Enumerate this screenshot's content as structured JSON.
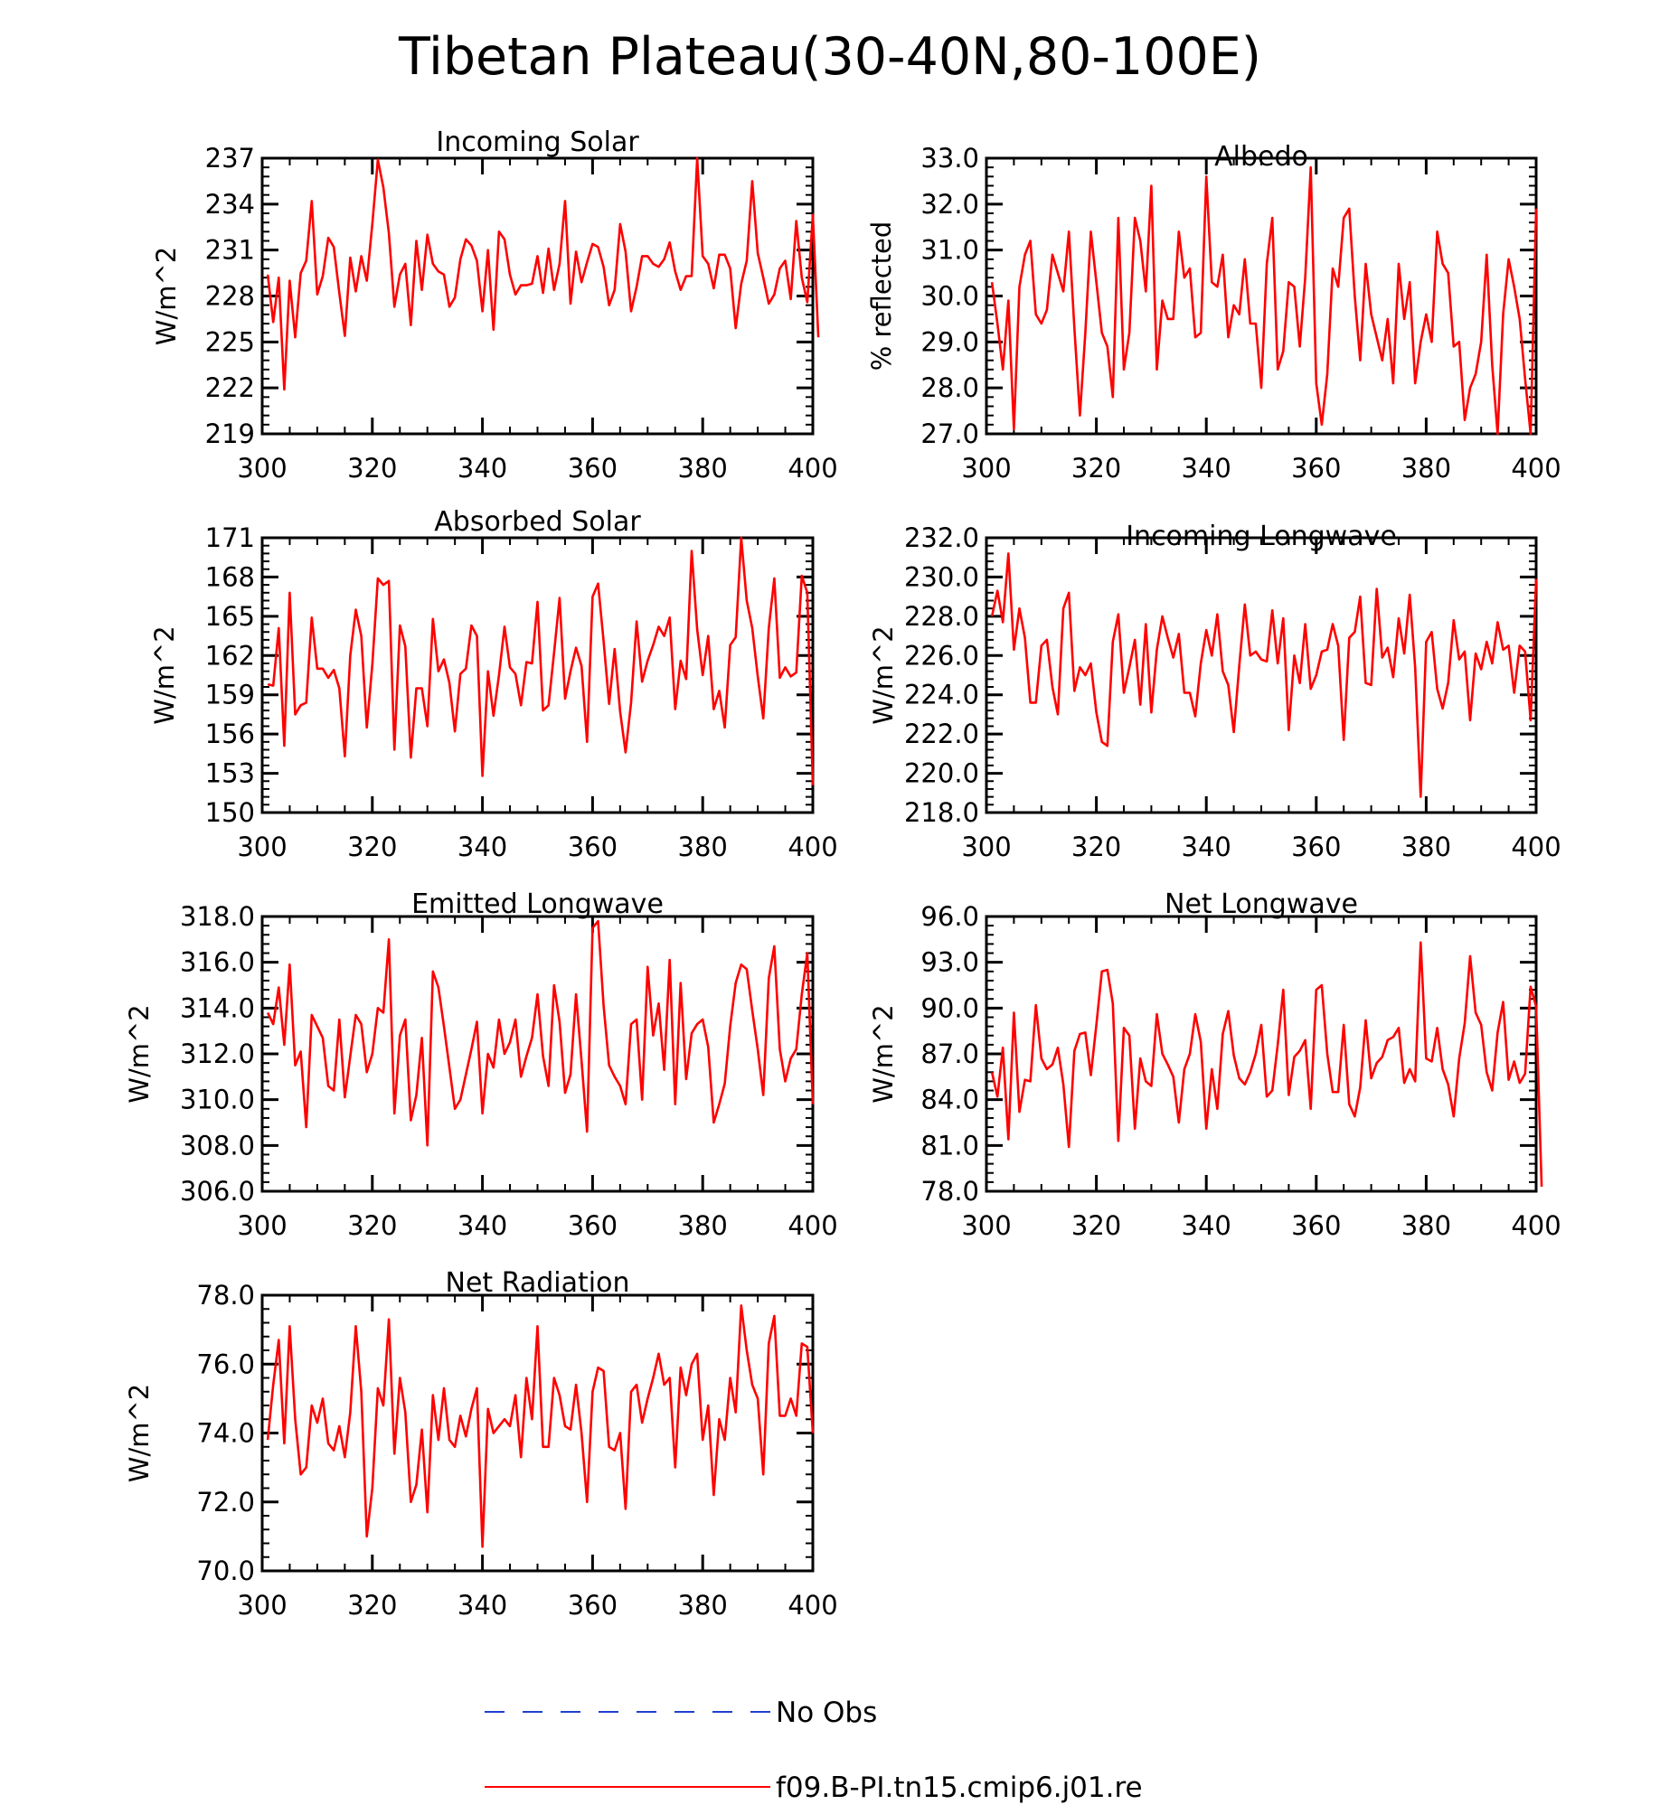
{
  "figure": {
    "title": "Tibetan Plateau(30-40N,80-100E)"
  },
  "legend": {
    "items": [
      {
        "label": "No Obs",
        "color": "#1f3fd0",
        "style": "dashed"
      },
      {
        "label": "f09.B-PI.tn15.cmip6.j01.re",
        "color": "#ff0000",
        "style": "solid"
      }
    ]
  },
  "colors": {
    "series": "#ff0000",
    "obs": "#1f3fd0",
    "axis": "#000000"
  },
  "chart_data": [
    {
      "type": "line",
      "title": "Incoming Solar",
      "ylabel": "W/m^2",
      "xlim": [
        300,
        400
      ],
      "ylim": [
        219,
        237
      ],
      "xticks": [
        "300",
        "320",
        "340",
        "360",
        "380",
        "400"
      ],
      "yticks": [
        "219",
        "222",
        "225",
        "228",
        "231",
        "234",
        "237"
      ],
      "series": [
        {
          "values": [
            229.4,
            226.3,
            229.2,
            221.9,
            229.0,
            225.3,
            229.5,
            230.3,
            234.2,
            228.1,
            229.3,
            231.8,
            231.2,
            228.2,
            225.4,
            230.5,
            228.3,
            230.6,
            229.0,
            232.7,
            236.9,
            235.1,
            232.1,
            227.3,
            229.4,
            230.1,
            226.1,
            231.6,
            228.4,
            232.0,
            230.1,
            229.6,
            229.4,
            227.3,
            227.9,
            230.4,
            231.7,
            231.3,
            230.3,
            227.0,
            231.0,
            225.8,
            232.2,
            231.7,
            229.4,
            228.1,
            228.7,
            228.7,
            228.8,
            230.6,
            228.2,
            231.1,
            228.4,
            230.1,
            234.2,
            227.5,
            230.9,
            228.9,
            230.2,
            231.4,
            231.2,
            229.9,
            227.4,
            228.4,
            232.7,
            230.9,
            227.0,
            228.6,
            230.6,
            230.6,
            230.1,
            229.9,
            230.4,
            231.5,
            229.6,
            228.4,
            229.3,
            229.3,
            237.0,
            230.6,
            230.1,
            228.5,
            230.7,
            230.7,
            229.8,
            225.9,
            228.8,
            230.3,
            235.5,
            230.8,
            229.2,
            227.5,
            228.1,
            229.8,
            230.3,
            227.8,
            232.9,
            229.2,
            227.6,
            233.3,
            225.3
          ]
        }
      ]
    },
    {
      "type": "line",
      "title": "Albedo",
      "ylabel": "% reflected",
      "xlim": [
        300,
        400
      ],
      "ylim": [
        27.0,
        33.0
      ],
      "xticks": [
        "300",
        "320",
        "340",
        "360",
        "380",
        "400"
      ],
      "yticks": [
        "27.0",
        "28.0",
        "29.0",
        "30.0",
        "31.0",
        "32.0",
        "33.0"
      ],
      "series": [
        {
          "values": [
            30.3,
            29.4,
            28.4,
            29.9,
            27.1,
            30.2,
            30.9,
            31.2,
            29.6,
            29.4,
            29.7,
            30.9,
            30.5,
            30.1,
            31.4,
            29.3,
            27.4,
            29.2,
            31.4,
            30.3,
            29.2,
            28.9,
            27.8,
            31.7,
            28.4,
            29.2,
            31.7,
            31.2,
            30.1,
            32.4,
            28.4,
            29.9,
            29.5,
            29.5,
            31.4,
            30.4,
            30.6,
            29.1,
            29.2,
            32.6,
            30.3,
            30.2,
            30.9,
            29.1,
            29.8,
            29.6,
            30.8,
            29.4,
            29.4,
            28.0,
            30.7,
            31.7,
            28.4,
            28.8,
            30.3,
            30.2,
            28.9,
            30.4,
            32.8,
            28.1,
            27.2,
            28.3,
            30.6,
            30.2,
            31.7,
            31.9,
            30.0,
            28.6,
            30.7,
            29.6,
            29.1,
            28.6,
            29.5,
            28.1,
            30.7,
            29.5,
            30.3,
            28.1,
            29.0,
            29.6,
            29.0,
            31.4,
            30.7,
            30.5,
            28.9,
            29.0,
            27.3,
            28.0,
            28.3,
            29.0,
            30.9,
            28.5,
            27.0,
            29.6,
            30.8,
            30.2,
            29.5,
            28.2,
            27.0,
            31.9
          ]
        }
      ]
    },
    {
      "type": "line",
      "title": "Absorbed Solar",
      "ylabel": "W/m^2",
      "xlim": [
        300,
        400
      ],
      "ylim": [
        150,
        171
      ],
      "xticks": [
        "300",
        "320",
        "340",
        "360",
        "380",
        "400"
      ],
      "yticks": [
        "150",
        "153",
        "156",
        "159",
        "162",
        "165",
        "168",
        "171"
      ],
      "series": [
        {
          "values": [
            159.8,
            159.7,
            164.1,
            155.1,
            166.8,
            157.5,
            158.2,
            158.4,
            164.9,
            161.0,
            161.0,
            160.3,
            160.9,
            159.5,
            154.3,
            162.0,
            165.5,
            163.5,
            156.5,
            161.3,
            167.9,
            167.4,
            167.7,
            154.8,
            164.3,
            162.7,
            154.2,
            159.5,
            159.5,
            156.6,
            164.8,
            160.8,
            161.7,
            159.9,
            156.2,
            160.6,
            161.0,
            164.3,
            163.5,
            152.8,
            160.8,
            157.4,
            160.5,
            164.2,
            161.1,
            160.6,
            158.2,
            161.5,
            161.4,
            166.1,
            157.8,
            158.2,
            162.2,
            166.4,
            158.7,
            160.8,
            162.6,
            161.2,
            155.4,
            166.5,
            167.5,
            163.1,
            158.3,
            162.5,
            157.7,
            154.6,
            158.4,
            164.6,
            160.0,
            161.6,
            162.8,
            164.2,
            163.5,
            164.9,
            157.9,
            161.6,
            160.2,
            170.0,
            164.0,
            160.5,
            163.5,
            157.9,
            159.3,
            156.5,
            162.8,
            163.4,
            171.0,
            166.2,
            164.1,
            160.4,
            157.2,
            164.1,
            167.9,
            160.3,
            161.1,
            160.4,
            160.7,
            168.1,
            166.8,
            152.1
          ]
        }
      ]
    },
    {
      "type": "line",
      "title": "Incoming Longwave",
      "ylabel": "W/m^2",
      "xlim": [
        300,
        400
      ],
      "ylim": [
        218.0,
        232.0
      ],
      "xticks": [
        "300",
        "320",
        "340",
        "360",
        "380",
        "400"
      ],
      "yticks": [
        "218.0",
        "220.0",
        "222.0",
        "224.0",
        "226.0",
        "228.0",
        "230.0",
        "232.0"
      ],
      "series": [
        {
          "values": [
            228.0,
            229.3,
            227.7,
            231.2,
            226.3,
            228.4,
            226.9,
            223.6,
            223.6,
            226.5,
            226.8,
            224.4,
            223.0,
            228.4,
            229.2,
            224.2,
            225.4,
            225.0,
            225.6,
            223.1,
            221.6,
            221.4,
            226.7,
            228.1,
            224.1,
            225.4,
            226.8,
            223.5,
            227.6,
            223.1,
            226.3,
            228.0,
            226.9,
            225.9,
            227.1,
            224.1,
            224.1,
            222.9,
            225.6,
            227.3,
            226.0,
            228.1,
            225.2,
            224.5,
            222.1,
            225.5,
            228.6,
            226.0,
            226.2,
            225.8,
            225.7,
            228.3,
            225.6,
            227.9,
            222.2,
            226.0,
            224.6,
            227.6,
            224.3,
            225.0,
            226.2,
            226.3,
            227.6,
            226.5,
            221.7,
            226.9,
            227.2,
            229.0,
            224.6,
            224.5,
            229.4,
            225.9,
            226.4,
            224.9,
            227.9,
            226.1,
            229.1,
            225.4,
            218.8,
            226.7,
            227.2,
            224.3,
            223.3,
            224.6,
            227.8,
            225.8,
            226.2,
            222.7,
            226.1,
            225.3,
            226.7,
            225.6,
            227.7,
            226.3,
            226.5,
            224.1,
            226.5,
            226.2,
            222.7,
            229.9
          ]
        }
      ]
    },
    {
      "type": "line",
      "title": "Emitted Longwave",
      "ylabel": "W/m^2",
      "xlim": [
        300,
        400
      ],
      "ylim": [
        306.0,
        318.0
      ],
      "xticks": [
        "300",
        "320",
        "340",
        "360",
        "380",
        "400"
      ],
      "yticks": [
        "306.0",
        "308.0",
        "310.0",
        "312.0",
        "314.0",
        "316.0",
        "318.0"
      ],
      "series": [
        {
          "values": [
            313.8,
            313.3,
            314.9,
            312.4,
            315.9,
            311.5,
            312.1,
            308.8,
            313.7,
            313.2,
            312.7,
            310.6,
            310.4,
            313.5,
            310.1,
            311.9,
            313.7,
            313.3,
            311.2,
            312.0,
            314.0,
            313.8,
            317.0,
            309.4,
            312.8,
            313.5,
            309.1,
            310.2,
            312.7,
            308.0,
            315.6,
            314.9,
            313.2,
            311.4,
            309.6,
            310.0,
            311.1,
            312.2,
            313.4,
            309.4,
            312.0,
            311.4,
            313.5,
            312.0,
            312.5,
            313.5,
            311.0,
            311.9,
            312.7,
            314.6,
            311.9,
            310.6,
            315.0,
            313.4,
            310.3,
            311.1,
            314.6,
            311.7,
            308.6,
            317.5,
            317.8,
            314.1,
            311.5,
            311.0,
            310.6,
            309.8,
            313.3,
            313.5,
            310.0,
            315.8,
            312.8,
            314.2,
            311.3,
            316.1,
            309.8,
            315.1,
            310.9,
            312.9,
            313.3,
            313.5,
            312.3,
            309.0,
            309.8,
            310.7,
            313.2,
            315.1,
            315.9,
            315.7,
            313.9,
            312.2,
            310.2,
            315.3,
            316.7,
            312.2,
            310.8,
            311.8,
            312.2,
            314.6,
            316.4,
            309.8
          ]
        }
      ]
    },
    {
      "type": "line",
      "title": "Net Longwave",
      "ylabel": "W/m^2",
      "xlim": [
        300,
        400
      ],
      "ylim": [
        78.0,
        96.0
      ],
      "xticks": [
        "300",
        "320",
        "340",
        "360",
        "380",
        "400"
      ],
      "yticks": [
        "78.0",
        "81.0",
        "84.0",
        "87.0",
        "90.0",
        "93.0",
        "96.0"
      ],
      "series": [
        {
          "values": [
            85.8,
            84.2,
            87.4,
            81.4,
            89.7,
            83.2,
            85.3,
            85.2,
            90.2,
            86.7,
            86.0,
            86.3,
            87.4,
            85.0,
            80.9,
            87.2,
            88.3,
            88.4,
            85.6,
            88.9,
            92.4,
            92.5,
            90.3,
            81.3,
            88.7,
            88.2,
            82.1,
            86.7,
            85.2,
            84.9,
            89.6,
            87.0,
            86.3,
            85.5,
            82.5,
            86.0,
            87.0,
            89.6,
            87.8,
            82.1,
            86.0,
            83.4,
            88.3,
            89.8,
            86.9,
            85.4,
            85.0,
            85.8,
            87.0,
            88.9,
            84.2,
            84.6,
            87.6,
            91.2,
            84.3,
            86.8,
            87.2,
            87.9,
            83.4,
            91.2,
            91.5,
            87.0,
            84.5,
            84.5,
            88.9,
            83.7,
            82.9,
            84.8,
            89.2,
            85.4,
            86.4,
            86.8,
            87.9,
            88.1,
            88.7,
            85.1,
            86.0,
            85.2,
            94.3,
            86.7,
            86.5,
            88.7,
            86.0,
            85.0,
            82.9,
            86.7,
            89.0,
            93.4,
            89.7,
            88.9,
            85.8,
            84.6,
            88.4,
            90.4,
            85.3,
            86.5,
            85.1,
            85.7,
            91.4,
            90.1,
            78.3
          ]
        }
      ]
    },
    {
      "type": "line",
      "title": "Net Radiation",
      "ylabel": "W/m^2",
      "xlim": [
        300,
        400
      ],
      "ylim": [
        70.0,
        78.0
      ],
      "xticks": [
        "300",
        "320",
        "340",
        "360",
        "380",
        "400"
      ],
      "yticks": [
        "70.0",
        "72.0",
        "74.0",
        "76.0",
        "78.0"
      ],
      "series": [
        {
          "values": [
            73.8,
            75.4,
            76.7,
            73.7,
            77.1,
            74.4,
            72.8,
            73.0,
            74.8,
            74.3,
            75.0,
            73.7,
            73.5,
            74.2,
            73.3,
            74.6,
            77.1,
            75.2,
            71.0,
            72.4,
            75.3,
            74.8,
            77.3,
            73.4,
            75.6,
            74.6,
            72.0,
            72.5,
            74.1,
            71.7,
            75.1,
            73.8,
            75.3,
            73.8,
            73.6,
            74.5,
            73.9,
            74.7,
            75.3,
            70.7,
            74.7,
            74.0,
            74.2,
            74.4,
            74.2,
            75.1,
            73.3,
            75.6,
            74.4,
            77.1,
            73.6,
            73.6,
            75.6,
            75.1,
            74.2,
            74.1,
            75.4,
            74.0,
            72.0,
            75.2,
            75.9,
            75.8,
            73.6,
            73.5,
            74.0,
            71.8,
            75.2,
            75.4,
            74.3,
            75.0,
            75.6,
            76.3,
            75.4,
            75.6,
            73.0,
            75.9,
            75.1,
            76.0,
            76.3,
            73.8,
            74.8,
            72.2,
            74.4,
            73.8,
            75.6,
            74.6,
            77.7,
            76.4,
            75.4,
            75.0,
            72.8,
            76.6,
            77.4,
            74.5,
            74.5,
            75.0,
            74.5,
            76.6,
            76.5,
            74.0
          ]
        }
      ]
    }
  ]
}
